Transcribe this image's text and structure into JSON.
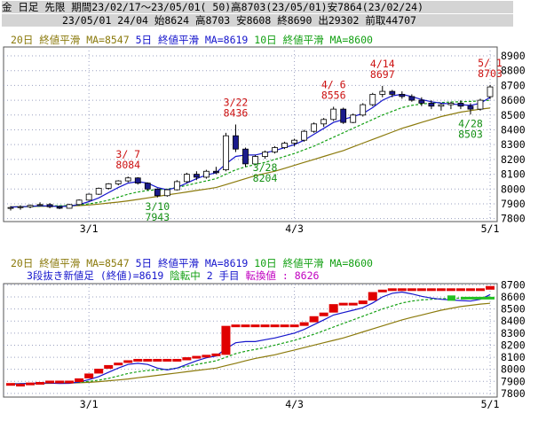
{
  "header": {
    "line1": "金 日足 先限 期間23/02/17～23/05/01( 50)高8703(23/05/01)安7864(23/02/24)",
    "line2": "23/05/01 24/04 始8624 高8703 安8608 終8690 出29302 前取44707"
  },
  "colors": {
    "ma20": "#8b7a0c",
    "ma5": "#1515cc",
    "ma10": "#13a013",
    "up": "#ffffff",
    "down": "#1b1b8c",
    "kagi_red": "#e00000",
    "kagi_green": "#22c022",
    "peak_label": "#cc1010",
    "trough_label": "#159015",
    "grid": "#9aa0c0"
  },
  "chart_data": [
    {
      "type": "candlestick",
      "legend": [
        {
          "text": "20日 終値平滑 MA=8547",
          "color": "#8b7a0c"
        },
        {
          "text": "5日 終値平滑 MA=8619",
          "color": "#1515cc"
        },
        {
          "text": "10日 終値平滑 MA=8600",
          "color": "#13a013"
        }
      ],
      "x_ticks": [
        {
          "label": "3/1",
          "index": 8
        },
        {
          "label": "4/3",
          "index": 29
        },
        {
          "label": "5/1",
          "index": 49
        }
      ],
      "y_ticks": [
        7800,
        7900,
        8000,
        8100,
        8200,
        8300,
        8400,
        8500,
        8600,
        8700,
        8800,
        8900
      ],
      "ylim": [
        7780,
        8960
      ],
      "ohlc": [
        [
          7870,
          7885,
          7855,
          7875
        ],
        [
          7875,
          7890,
          7860,
          7880
        ],
        [
          7880,
          7895,
          7870,
          7890
        ],
        [
          7890,
          7910,
          7885,
          7895
        ],
        [
          7895,
          7905,
          7870,
          7880
        ],
        [
          7880,
          7885,
          7864,
          7870
        ],
        [
          7870,
          7900,
          7868,
          7895
        ],
        [
          7895,
          7930,
          7890,
          7925
        ],
        [
          7925,
          7970,
          7920,
          7965
        ],
        [
          7965,
          8010,
          7960,
          8005
        ],
        [
          8005,
          8040,
          7995,
          8035
        ],
        [
          8035,
          8060,
          8025,
          8055
        ],
        [
          8055,
          8084,
          8045,
          8075
        ],
        [
          8075,
          8080,
          8030,
          8040
        ],
        [
          8040,
          8045,
          7990,
          8000
        ],
        [
          8000,
          8005,
          7943,
          7955
        ],
        [
          7955,
          8000,
          7948,
          7995
        ],
        [
          7995,
          8060,
          7990,
          8050
        ],
        [
          8050,
          8110,
          8040,
          8100
        ],
        [
          8100,
          8120,
          8060,
          8080
        ],
        [
          8080,
          8130,
          8070,
          8120
        ],
        [
          8120,
          8150,
          8100,
          8110
        ],
        [
          8130,
          8380,
          8120,
          8360
        ],
        [
          8360,
          8436,
          8250,
          8270
        ],
        [
          8270,
          8280,
          8150,
          8170
        ],
        [
          8170,
          8230,
          8160,
          8220
        ],
        [
          8220,
          8260,
          8204,
          8250
        ],
        [
          8250,
          8290,
          8240,
          8280
        ],
        [
          8280,
          8320,
          8270,
          8310
        ],
        [
          8310,
          8340,
          8290,
          8330
        ],
        [
          8330,
          8400,
          8320,
          8390
        ],
        [
          8390,
          8450,
          8380,
          8440
        ],
        [
          8440,
          8480,
          8420,
          8470
        ],
        [
          8470,
          8556,
          8460,
          8540
        ],
        [
          8540,
          8550,
          8440,
          8450
        ],
        [
          8450,
          8510,
          8445,
          8500
        ],
        [
          8500,
          8580,
          8490,
          8570
        ],
        [
          8570,
          8650,
          8560,
          8640
        ],
        [
          8640,
          8697,
          8620,
          8660
        ],
        [
          8660,
          8670,
          8620,
          8640
        ],
        [
          8640,
          8660,
          8610,
          8625
        ],
        [
          8625,
          8640,
          8590,
          8600
        ],
        [
          8600,
          8620,
          8560,
          8580
        ],
        [
          8580,
          8600,
          8540,
          8560
        ],
        [
          8560,
          8580,
          8530,
          8570
        ],
        [
          8570,
          8590,
          8540,
          8580
        ],
        [
          8580,
          8600,
          8540,
          8560
        ],
        [
          8560,
          8580,
          8503,
          8540
        ],
        [
          8540,
          8610,
          8530,
          8600
        ],
        [
          8624,
          8703,
          8608,
          8690
        ]
      ],
      "ma20": [
        7880,
        7881,
        7882,
        7883,
        7884,
        7885,
        7886,
        7888,
        7892,
        7898,
        7905,
        7912,
        7920,
        7930,
        7940,
        7950,
        7960,
        7970,
        7980,
        7990,
        8000,
        8010,
        8030,
        8050,
        8070,
        8090,
        8105,
        8120,
        8140,
        8160,
        8180,
        8200,
        8220,
        8240,
        8260,
        8285,
        8310,
        8335,
        8360,
        8385,
        8410,
        8430,
        8450,
        8470,
        8490,
        8505,
        8520,
        8530,
        8540,
        8547
      ],
      "ma5": [
        7878,
        7880,
        7883,
        7887,
        7885,
        7882,
        7884,
        7895,
        7915,
        7940,
        7975,
        8010,
        8040,
        8050,
        8040,
        8010,
        7995,
        8010,
        8040,
        8070,
        8095,
        8110,
        8170,
        8220,
        8230,
        8230,
        8245,
        8260,
        8280,
        8300,
        8330,
        8370,
        8410,
        8450,
        8470,
        8490,
        8510,
        8550,
        8600,
        8630,
        8640,
        8625,
        8605,
        8590,
        8580,
        8575,
        8570,
        8565,
        8580,
        8619
      ],
      "ma10": [
        7878,
        7880,
        7882,
        7884,
        7886,
        7887,
        7888,
        7892,
        7900,
        7910,
        7925,
        7945,
        7965,
        7980,
        7990,
        7995,
        8000,
        8010,
        8025,
        8040,
        8055,
        8070,
        8100,
        8130,
        8150,
        8165,
        8180,
        8200,
        8220,
        8240,
        8265,
        8290,
        8320,
        8350,
        8380,
        8410,
        8440,
        8470,
        8500,
        8525,
        8550,
        8565,
        8575,
        8580,
        8585,
        8588,
        8590,
        8592,
        8595,
        8600
      ],
      "peaks": [
        {
          "date": "3/ 7",
          "value": "8084",
          "index": 12
        },
        {
          "date": "3/22",
          "value": "8436",
          "index": 23
        },
        {
          "date": "4/ 6",
          "value": "8556",
          "index": 33
        },
        {
          "date": "4/14",
          "value": "8697",
          "index": 38
        },
        {
          "date": "5/ 1",
          "value": "8703",
          "index": 49
        }
      ],
      "troughs": [
        {
          "date": "3/10",
          "value": "7943",
          "index": 15
        },
        {
          "date": "3/28",
          "value": "8204",
          "index": 26
        },
        {
          "date": "4/28",
          "value": "8503",
          "index": 47
        }
      ]
    },
    {
      "type": "kagi",
      "legend": [
        {
          "text": "20日 終値平滑 MA=8547",
          "color": "#8b7a0c"
        },
        {
          "text": "5日 終値平滑 MA=8619",
          "color": "#1515cc"
        },
        {
          "text": "10日 終値平滑 MA=8600",
          "color": "#13a013"
        }
      ],
      "legend2": [
        {
          "text": "3段抜き新値足 (終値)=8619",
          "color": "#1515cc"
        },
        {
          "text": "陰転中",
          "color": "#13a013"
        },
        {
          "text": "2 手目",
          "color": "#1515cc"
        },
        {
          "text": "転換値 : 8626",
          "color": "#c000c0"
        }
      ],
      "x_ticks": [
        {
          "label": "3/1",
          "index": 8
        },
        {
          "label": "4/3",
          "index": 29
        },
        {
          "label": "5/1",
          "index": 49
        }
      ],
      "y_ticks": [
        7800,
        7900,
        8000,
        8100,
        8200,
        8300,
        8400,
        8500,
        8600,
        8700
      ],
      "ylim": [
        7770,
        8710
      ]
    }
  ]
}
